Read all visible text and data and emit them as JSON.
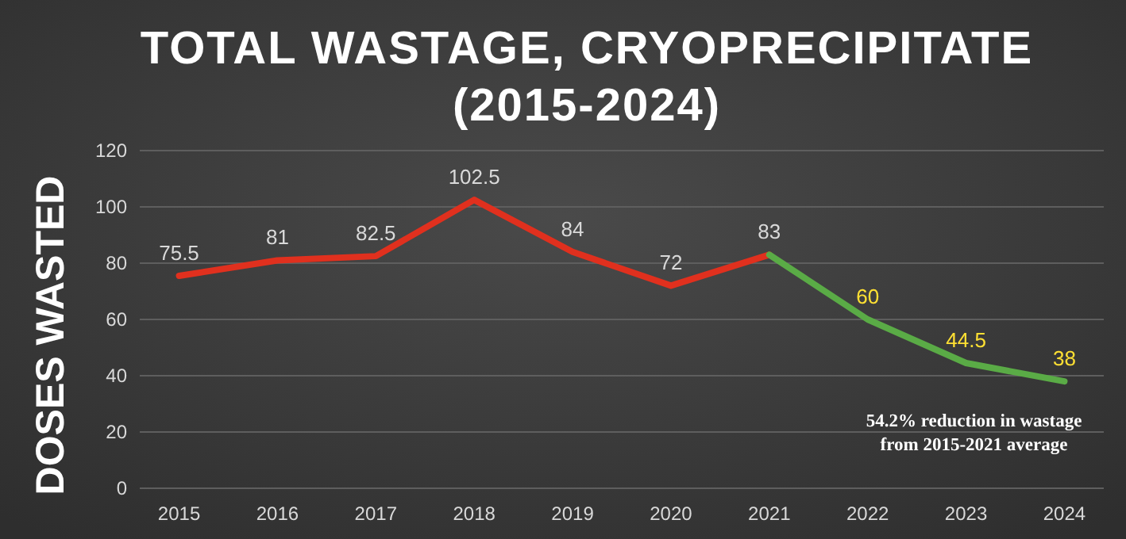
{
  "chart_data": {
    "type": "line",
    "title": "TOTAL WASTAGE, CRYOPRECIPITATE (2015-2024)",
    "ylabel": "DOSES WASTED",
    "categories": [
      "2015",
      "2016",
      "2017",
      "2018",
      "2019",
      "2020",
      "2021",
      "2022",
      "2023",
      "2024"
    ],
    "series": [
      {
        "color": "#e0301e",
        "values": [
          75.5,
          81,
          82.5,
          102.5,
          84,
          72,
          83,
          null,
          null,
          null
        ],
        "value_labels": [
          "75.5",
          "81",
          "82.5",
          "102.5",
          "84",
          "72",
          "83",
          null,
          null,
          null
        ]
      },
      {
        "color": "#5aab46",
        "values": [
          null,
          null,
          null,
          null,
          null,
          null,
          83,
          60,
          44.5,
          38
        ],
        "value_labels": [
          null,
          null,
          null,
          null,
          null,
          null,
          null,
          "60",
          "44.5",
          "38"
        ]
      }
    ],
    "ylim": [
      0,
      120
    ],
    "yticks": [
      0,
      20,
      40,
      60,
      80,
      100,
      120
    ],
    "grid": "y",
    "marker": "none",
    "line_style": "solid",
    "annotations": [
      "54.2% reduction in wastage from 2015-2021 average"
    ]
  }
}
